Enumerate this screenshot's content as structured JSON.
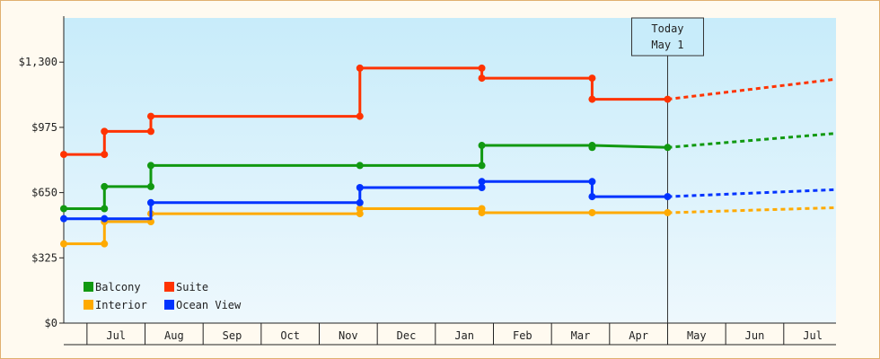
{
  "chart_data": {
    "type": "line",
    "y_ticks": [
      "$0",
      "$325",
      "$650",
      "$975",
      "$1,300"
    ],
    "y_tick_values": [
      0,
      325,
      650,
      975,
      1300
    ],
    "ylim": [
      0,
      1520
    ],
    "x_ticks": [
      "Jul",
      "Aug",
      "Sep",
      "Oct",
      "Nov",
      "Dec",
      "Jan",
      "Feb",
      "Mar",
      "Apr",
      "May",
      "Jun",
      "Jul"
    ],
    "x_tick_pos": [
      0.5,
      1.5,
      2.5,
      3.5,
      4.5,
      5.5,
      6.5,
      7.5,
      8.5,
      9.5,
      10.5,
      11.5,
      12.5
    ],
    "xlim": [
      -0.4,
      12.9
    ],
    "today": {
      "line1": "Today",
      "line2": "May 1",
      "x": 10.0
    },
    "legend": {
      "placement": "bottom-left"
    },
    "series": [
      {
        "name": "Balcony",
        "color": "#119911",
        "points": [
          [
            -0.4,
            570
          ],
          [
            0.3,
            570
          ],
          [
            0.3,
            680
          ],
          [
            1.1,
            680
          ],
          [
            1.1,
            785
          ],
          [
            4.7,
            785
          ],
          [
            6.8,
            785
          ],
          [
            6.8,
            885
          ],
          [
            8.7,
            885
          ],
          [
            10.0,
            875
          ]
        ],
        "markers": [
          [
            -0.4,
            570
          ],
          [
            0.3,
            570
          ],
          [
            0.3,
            680
          ],
          [
            1.1,
            680
          ],
          [
            1.1,
            785
          ],
          [
            4.7,
            785
          ],
          [
            6.8,
            785
          ],
          [
            6.8,
            885
          ],
          [
            8.7,
            885
          ],
          [
            8.7,
            875
          ],
          [
            10.0,
            875
          ]
        ],
        "forecast": [
          [
            10.0,
            875
          ],
          [
            12.9,
            945
          ]
        ]
      },
      {
        "name": "Suite",
        "color": "#ff3300",
        "points": [
          [
            -0.4,
            840
          ],
          [
            0.3,
            840
          ],
          [
            0.3,
            955
          ],
          [
            1.1,
            955
          ],
          [
            1.1,
            1030
          ],
          [
            4.7,
            1030
          ],
          [
            4.7,
            1270
          ],
          [
            6.8,
            1270
          ],
          [
            6.8,
            1220
          ],
          [
            8.7,
            1220
          ],
          [
            8.7,
            1115
          ],
          [
            10.0,
            1115
          ]
        ],
        "markers": [
          [
            -0.4,
            840
          ],
          [
            0.3,
            840
          ],
          [
            0.3,
            955
          ],
          [
            1.1,
            955
          ],
          [
            1.1,
            1030
          ],
          [
            4.7,
            1030
          ],
          [
            4.7,
            1270
          ],
          [
            6.8,
            1270
          ],
          [
            6.8,
            1220
          ],
          [
            8.7,
            1220
          ],
          [
            8.7,
            1115
          ],
          [
            10.0,
            1115
          ]
        ],
        "forecast": [
          [
            10.0,
            1115
          ],
          [
            12.9,
            1215
          ]
        ]
      },
      {
        "name": "Interior",
        "color": "#ffaa00",
        "points": [
          [
            -0.4,
            395
          ],
          [
            0.3,
            395
          ],
          [
            0.3,
            505
          ],
          [
            1.1,
            505
          ],
          [
            1.1,
            545
          ],
          [
            4.7,
            545
          ],
          [
            4.7,
            570
          ],
          [
            6.8,
            570
          ],
          [
            6.8,
            550
          ],
          [
            8.7,
            550
          ],
          [
            10.0,
            550
          ]
        ],
        "markers": [
          [
            -0.4,
            395
          ],
          [
            0.3,
            395
          ],
          [
            0.3,
            505
          ],
          [
            1.1,
            505
          ],
          [
            1.1,
            545
          ],
          [
            4.7,
            545
          ],
          [
            4.7,
            570
          ],
          [
            6.8,
            570
          ],
          [
            6.8,
            550
          ],
          [
            8.7,
            550
          ],
          [
            10.0,
            550
          ]
        ],
        "forecast": [
          [
            10.0,
            550
          ],
          [
            12.9,
            575
          ]
        ]
      },
      {
        "name": "Ocean View",
        "color": "#0033ff",
        "points": [
          [
            -0.4,
            520
          ],
          [
            0.3,
            520
          ],
          [
            1.1,
            520
          ],
          [
            1.1,
            600
          ],
          [
            4.7,
            600
          ],
          [
            4.7,
            675
          ],
          [
            6.8,
            675
          ],
          [
            6.8,
            705
          ],
          [
            8.7,
            705
          ],
          [
            8.7,
            630
          ],
          [
            10.0,
            630
          ]
        ],
        "markers": [
          [
            -0.4,
            520
          ],
          [
            0.3,
            520
          ],
          [
            1.1,
            600
          ],
          [
            4.7,
            600
          ],
          [
            4.7,
            675
          ],
          [
            6.8,
            675
          ],
          [
            6.8,
            705
          ],
          [
            8.7,
            705
          ],
          [
            8.7,
            630
          ],
          [
            10.0,
            630
          ]
        ],
        "forecast": [
          [
            10.0,
            630
          ],
          [
            12.9,
            665
          ]
        ]
      }
    ]
  }
}
